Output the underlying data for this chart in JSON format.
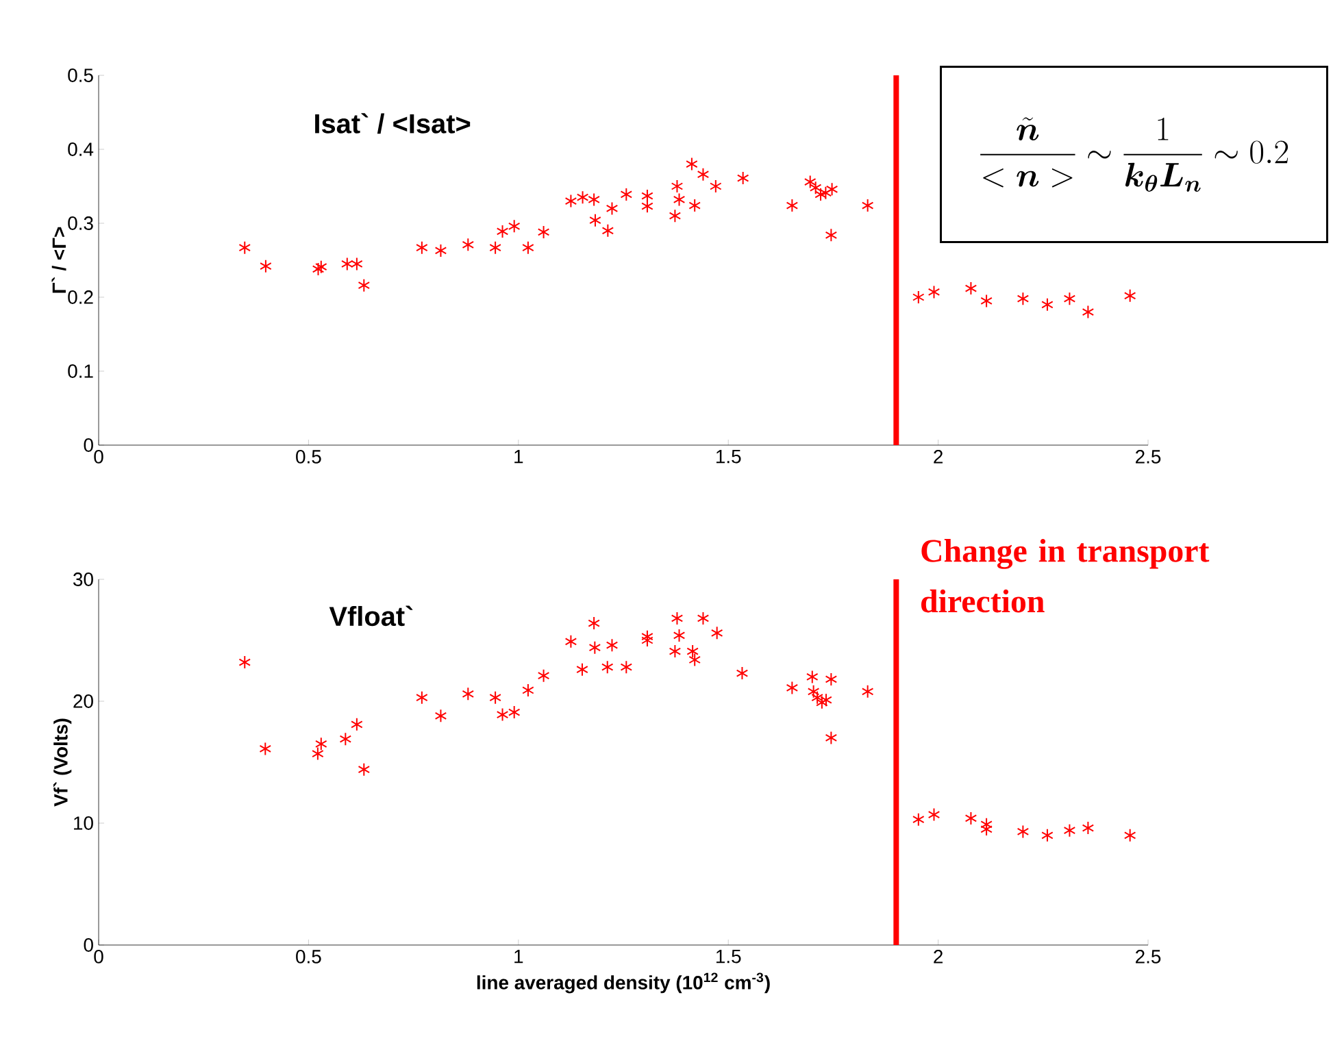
{
  "chart_data": [
    {
      "type": "scatter",
      "ylabel": "Γ` / <Γ>",
      "annotations": [
        "Isat` / <Isat>",
        "\\frac{\\tilde{\\boldsymbol{n}}}{<\\boldsymbol{n}>}\\sim\\frac{1}{\\boldsymbol{k_{\\theta}L_{n}}}\\sim 0.2"
      ],
      "marker": "cross",
      "grid": false,
      "xlim": [
        0,
        2.5
      ],
      "xticks": [
        0,
        0.5,
        1,
        1.5,
        2,
        2.5
      ],
      "ylim": [
        0,
        0.5
      ],
      "yticks": [
        0,
        0.1,
        0.2,
        0.3,
        0.4,
        0.5
      ],
      "x": [
        0.348,
        0.398,
        0.523,
        0.53,
        0.592,
        0.615,
        0.632,
        0.77,
        0.815,
        0.88,
        0.945,
        0.962,
        0.99,
        1.023,
        1.06,
        1.125,
        1.153,
        1.18,
        1.183,
        1.213,
        1.223,
        1.257,
        1.307,
        1.307,
        1.373,
        1.378,
        1.383,
        1.413,
        1.42,
        1.44,
        1.47,
        1.535,
        1.652,
        1.695,
        1.708,
        1.72,
        1.732,
        1.747,
        1.745,
        1.832,
        1.953,
        1.99,
        2.078,
        2.115,
        2.202,
        2.26,
        2.313,
        2.357,
        2.457
      ],
      "series": [
        {
          "color": "#ff0000",
          "values": [
            0.267,
            0.242,
            0.238,
            0.241,
            0.245,
            0.245,
            0.216,
            0.267,
            0.263,
            0.271,
            0.267,
            0.289,
            0.296,
            0.267,
            0.288,
            0.33,
            0.335,
            0.332,
            0.304,
            0.29,
            0.32,
            0.339,
            0.337,
            0.323,
            0.31,
            0.35,
            0.332,
            0.38,
            0.324,
            0.366,
            0.35,
            0.361,
            0.324,
            0.356,
            0.348,
            0.339,
            0.341,
            0.346,
            0.284,
            0.324,
            0.2,
            0.207,
            0.212,
            0.195,
            0.198,
            0.19,
            0.198,
            0.18,
            0.202
          ]
        }
      ],
      "ref_lines": [
        {
          "axis": "x",
          "value": 1.9,
          "color": "#ff0000"
        }
      ]
    },
    {
      "type": "scatter",
      "xlabel": "line averaged density (10$^{12}$ cm$^{-3}$)",
      "ylabel": "Vf` (Volts)",
      "annotations": [
        "Vfloat`",
        "Change in transport direction"
      ],
      "marker": "cross",
      "grid": false,
      "xlim": [
        0,
        2.5
      ],
      "xticks": [
        0,
        0.5,
        1,
        1.5,
        2,
        2.5
      ],
      "ylim": [
        0,
        30
      ],
      "yticks": [
        0,
        10,
        20,
        30
      ],
      "x": [
        0.348,
        0.397,
        0.522,
        0.53,
        0.588,
        0.615,
        0.632,
        0.77,
        0.815,
        0.88,
        0.945,
        0.962,
        0.99,
        1.023,
        1.06,
        1.125,
        1.152,
        1.18,
        1.182,
        1.212,
        1.223,
        1.257,
        1.307,
        1.307,
        1.373,
        1.378,
        1.383,
        1.415,
        1.42,
        1.44,
        1.473,
        1.533,
        1.652,
        1.7,
        1.703,
        1.712,
        1.723,
        1.733,
        1.745,
        1.745,
        1.832,
        1.953,
        1.99,
        2.078,
        2.115,
        2.115,
        2.202,
        2.26,
        2.313,
        2.357,
        2.457
      ],
      "series": [
        {
          "color": "#ff0000",
          "values": [
            23.2,
            16.1,
            15.7,
            16.5,
            16.9,
            18.1,
            14.4,
            20.3,
            18.8,
            20.6,
            20.3,
            18.9,
            19.1,
            20.9,
            22.1,
            24.9,
            22.6,
            26.4,
            24.4,
            22.8,
            24.6,
            22.8,
            25.3,
            25.0,
            24.1,
            26.8,
            25.4,
            24.1,
            23.4,
            26.8,
            25.6,
            22.3,
            21.1,
            22.0,
            20.8,
            20.3,
            19.9,
            20.1,
            21.8,
            17.0,
            20.8,
            10.3,
            10.7,
            10.4,
            9.9,
            9.5,
            9.3,
            9.0,
            9.4,
            9.6,
            9.0
          ]
        }
      ],
      "ref_lines": [
        {
          "axis": "x",
          "value": 1.9,
          "color": "#ff0000"
        }
      ]
    }
  ]
}
